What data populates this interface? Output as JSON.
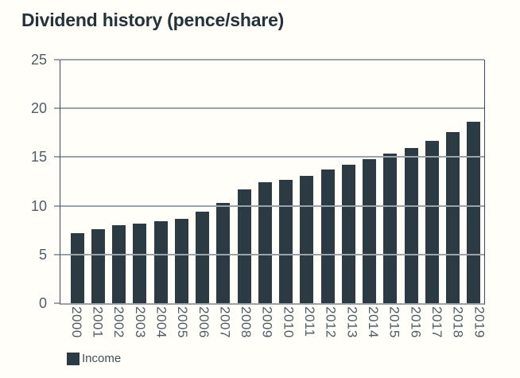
{
  "title": "Dividend history (pence/share)",
  "legend": {
    "label": "Income"
  },
  "colors": {
    "bar": "#2c3a43",
    "title_text": "#24323c",
    "axis_text": "#4e5d66",
    "gridline": "#9aa3a9",
    "axis_line": "#3c4a53",
    "background": "#fffef8"
  },
  "chart_data": {
    "type": "bar",
    "title": "Dividend history (pence/share)",
    "categories": [
      "2000",
      "2001",
      "2002",
      "2003",
      "2004",
      "2005",
      "2006",
      "2007",
      "2008",
      "2009",
      "2010",
      "2011",
      "2012",
      "2013",
      "2014",
      "2015",
      "2016",
      "2017",
      "2018",
      "2019"
    ],
    "series": [
      {
        "name": "Income",
        "values": [
          7.2,
          7.6,
          8.0,
          8.2,
          8.4,
          8.7,
          9.4,
          10.3,
          11.7,
          12.4,
          12.7,
          13.1,
          13.7,
          14.2,
          14.8,
          15.4,
          15.9,
          16.7,
          17.6,
          18.6
        ]
      }
    ],
    "xlabel": "",
    "ylabel": "",
    "ylim": [
      0,
      25
    ],
    "yticks": [
      0,
      5,
      10,
      15,
      20,
      25
    ],
    "grid": true,
    "legend_position": "bottom-left",
    "x_tick_rotation": 90
  }
}
